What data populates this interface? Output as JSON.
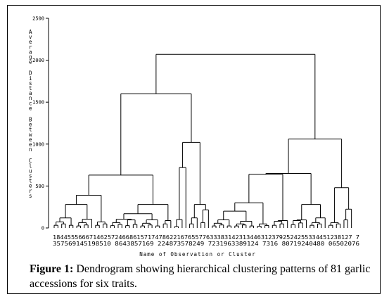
{
  "chart_data": {
    "type": "dendrogram",
    "ylabel": "Average Distance Between Clusters",
    "xlabel": "Name of Observation or Cluster",
    "ylim": [
      0,
      2500
    ],
    "yticks": [
      "0",
      "500",
      "1000",
      "1500",
      "2000",
      "2500"
    ],
    "leaf_labels_row1": "1844555666714625724668615717478622167655776333831423134463123792524255334451238127 7",
    "leaf_labels_row2": "357569145198510 8643857169 224873578249 7231963389124 7316 80719240480 06502076",
    "merge_heights": [
      2070,
      1600,
      1060,
      1020,
      720,
      640,
      630,
      490,
      390,
      300,
      280,
      280,
      230,
      220,
      200,
      180,
      150,
      120,
      100,
      80
    ]
  },
  "caption": {
    "label": "Figure 1:",
    "text": " Dendrogram showing hierarchical clustering patterns of 81 garlic accessions for six traits."
  }
}
